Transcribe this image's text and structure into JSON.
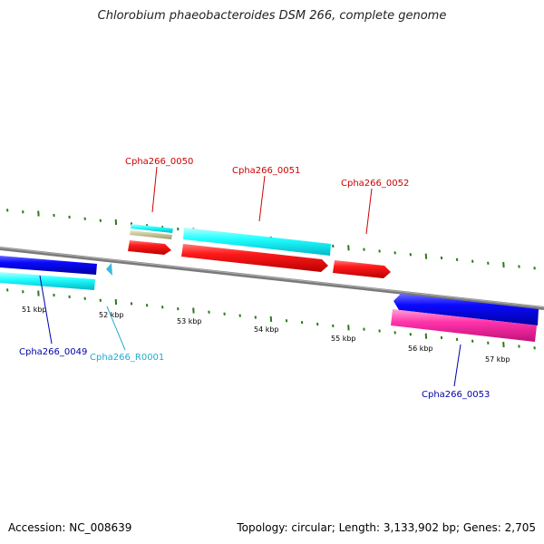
{
  "title": "Chlorobium phaeobacteroides DSM 266, complete genome",
  "footer": {
    "accession": "Accession: NC_008639",
    "summary": "Topology: circular; Length: 3,133,902 bp; Genes: 2,705"
  },
  "colors": {
    "backbone": "#8a8a8a",
    "tick": "#2a7a1a",
    "gene": "#ff0000",
    "cds": "#00ffff",
    "reverse_gene": "#0000ee",
    "reverse_cds_magenta": "#ff33aa",
    "rna": "#33ccee",
    "misc_feature": "#b8b88a",
    "label_red": "#cc0000",
    "label_blue": "#0000aa",
    "label_cyan": "#22aacc"
  },
  "ticks": [
    "51 kbp",
    "52 kbp",
    "53 kbp",
    "54 kbp",
    "55 kbp",
    "56 kbp",
    "57 kbp"
  ],
  "features": [
    {
      "id": "Cpha266_0049",
      "strand": "reverse",
      "type": "gene"
    },
    {
      "id": "Cpha266_R0001",
      "strand": "reverse",
      "type": "rna"
    },
    {
      "id": "Cpha266_0050",
      "strand": "forward",
      "type": "gene"
    },
    {
      "id": "Cpha266_0051",
      "strand": "forward",
      "type": "gene"
    },
    {
      "id": "Cpha266_0052",
      "strand": "forward",
      "type": "gene"
    },
    {
      "id": "Cpha266_0053",
      "strand": "reverse",
      "type": "gene"
    }
  ]
}
